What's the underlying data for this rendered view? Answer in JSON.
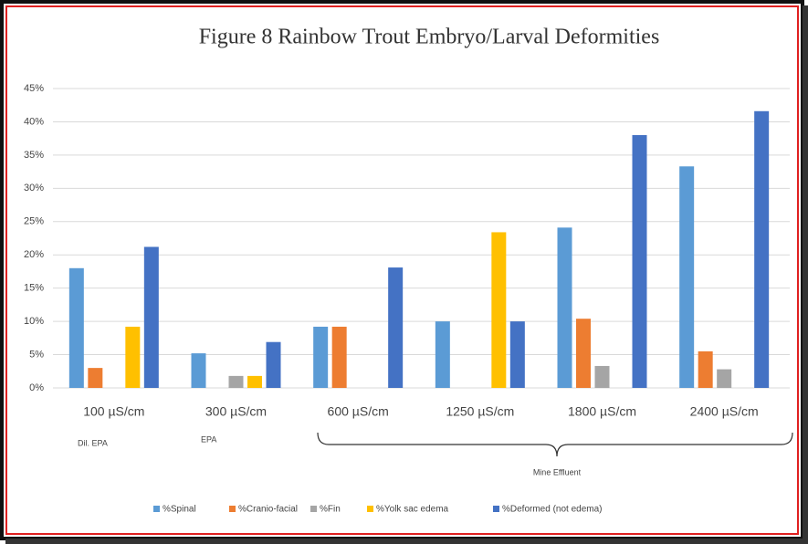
{
  "chart_data": {
    "type": "bar",
    "title": "Figure 8 Rainbow Trout Embryo/Larval Deformities",
    "categories": [
      "100 µS/cm",
      "300 µS/cm",
      "600 µS/cm",
      "1250 µS/cm",
      "1800 µS/cm",
      "2400 µS/cm"
    ],
    "series": [
      {
        "name": "%Spinal",
        "color": "#5b9bd5",
        "values": [
          18,
          5.2,
          9.2,
          10,
          24.1,
          33.3
        ]
      },
      {
        "name": "%Cranio-facial",
        "color": "#ed7d31",
        "values": [
          3,
          0,
          9.2,
          0,
          10.4,
          5.5
        ]
      },
      {
        "name": "%Fin",
        "color": "#a5a5a5",
        "values": [
          0,
          1.8,
          0,
          0,
          3.3,
          2.8
        ]
      },
      {
        "name": "%Yolk sac edema",
        "color": "#ffc000",
        "values": [
          9.2,
          1.8,
          0,
          23.4,
          0,
          0
        ]
      },
      {
        "name": "%Deformed (not edema)",
        "color": "#4472c4",
        "values": [
          21.2,
          6.9,
          18.1,
          10,
          38,
          41.6
        ]
      }
    ],
    "ylim": [
      0,
      45
    ],
    "yticks": [
      {
        "value": 0,
        "label": "0%"
      },
      {
        "value": 5,
        "label": "5%"
      },
      {
        "value": 10,
        "label": "10%"
      },
      {
        "value": 15,
        "label": "15%"
      },
      {
        "value": 20,
        "label": "20%"
      },
      {
        "value": 25,
        "label": "25%"
      },
      {
        "value": 30,
        "label": "30%"
      },
      {
        "value": 35,
        "label": "35%"
      },
      {
        "value": 40,
        "label": "40%"
      },
      {
        "value": 45,
        "label": "45%"
      }
    ],
    "grid": true,
    "annotations": [
      "Dil. EPA",
      "EPA",
      "Mine Effluent"
    ],
    "legend": "bottom"
  }
}
